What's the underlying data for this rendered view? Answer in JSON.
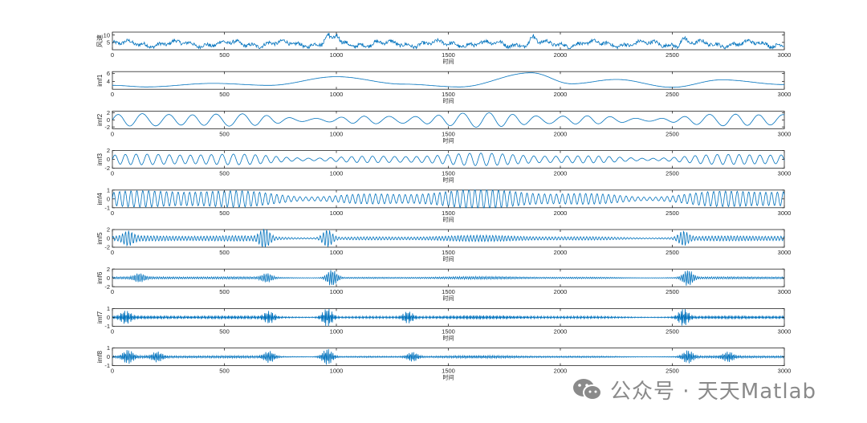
{
  "chart_data": {
    "type": "line",
    "title": "",
    "line_color": "#0072BD",
    "xlim": [
      0,
      3000
    ],
    "xticks": [
      0,
      500,
      1000,
      1500,
      2000,
      2500,
      3000
    ],
    "xlabel": "时间",
    "panels": [
      {
        "name": "wind-speed",
        "ylabel": "风速",
        "ylim": [
          0,
          12
        ],
        "yticks": [
          5,
          10
        ],
        "yticklabels": [
          "5",
          "10"
        ]
      },
      {
        "name": "imf1",
        "ylabel": "imf1",
        "ylim": [
          2,
          6.5
        ],
        "yticks": [
          4,
          6
        ],
        "yticklabels": [
          "4",
          "6"
        ]
      },
      {
        "name": "imf2",
        "ylabel": "imf2",
        "ylim": [
          -2.5,
          2.5
        ],
        "yticks": [
          -2,
          0,
          2
        ],
        "yticklabels": [
          "-2",
          "0",
          "2"
        ]
      },
      {
        "name": "imf3",
        "ylabel": "imf3",
        "ylim": [
          -2,
          2
        ],
        "yticks": [
          -2,
          0,
          2
        ],
        "yticklabels": [
          "-2",
          "0",
          "2"
        ]
      },
      {
        "name": "imf4",
        "ylabel": "imf4",
        "ylim": [
          -1,
          1
        ],
        "yticks": [
          -1,
          0,
          1
        ],
        "yticklabels": [
          "-1",
          "0",
          "1"
        ]
      },
      {
        "name": "imf5",
        "ylabel": "imf5",
        "ylim": [
          -2,
          2
        ],
        "yticks": [
          -2,
          0,
          2
        ],
        "yticklabels": [
          "-2",
          "0",
          "2"
        ]
      },
      {
        "name": "imf6",
        "ylabel": "imf6",
        "ylim": [
          -2,
          2
        ],
        "yticks": [
          -2,
          0,
          2
        ],
        "yticklabels": [
          "-2",
          "0",
          "2"
        ]
      },
      {
        "name": "imf7",
        "ylabel": "imf7",
        "ylim": [
          -1,
          1
        ],
        "yticks": [
          -1,
          0,
          1
        ],
        "yticklabels": [
          "-1",
          "0",
          "1"
        ]
      },
      {
        "name": "imf8",
        "ylabel": "imf8",
        "ylim": [
          -1,
          1
        ],
        "yticks": [
          -1,
          0,
          1
        ],
        "yticklabels": [
          "-1",
          "0",
          "1"
        ]
      }
    ],
    "series_model": {
      "wind-speed": {
        "kind": "noise",
        "base": 4,
        "spikes": [
          [
            960,
            11
          ],
          [
            1000,
            10.5
          ],
          [
            1880,
            10
          ],
          [
            2550,
            9
          ]
        ]
      },
      "imf1": {
        "kind": "trend",
        "knots": [
          [
            0,
            3.0
          ],
          [
            150,
            2.6
          ],
          [
            450,
            3.5
          ],
          [
            700,
            3.0
          ],
          [
            1000,
            5.2
          ],
          [
            1300,
            3.3
          ],
          [
            1550,
            2.6
          ],
          [
            1870,
            6.2
          ],
          [
            2050,
            3.4
          ],
          [
            2250,
            4.5
          ],
          [
            2500,
            2.5
          ],
          [
            2720,
            4.4
          ],
          [
            3000,
            3.2
          ]
        ]
      },
      "imf2": {
        "kind": "osc",
        "period": 110,
        "amp": 1.6
      },
      "imf3": {
        "kind": "osc",
        "period": 48,
        "amp": 1.1
      },
      "imf4": {
        "kind": "osc",
        "period": 26,
        "amp": 0.85
      },
      "imf5": {
        "kind": "osc",
        "period": 14,
        "amp": 0.55,
        "bursts": [
          [
            680,
            1.9
          ],
          [
            960,
            1.8
          ],
          [
            2550,
            1.4
          ],
          [
            70,
            1.2
          ]
        ]
      },
      "imf6": {
        "kind": "osc",
        "period": 9,
        "amp": 0.25,
        "bursts": [
          [
            690,
            0.9
          ],
          [
            980,
            1.8
          ],
          [
            2570,
            1.7
          ],
          [
            120,
            0.8
          ]
        ]
      },
      "imf7": {
        "kind": "osc",
        "period": 6,
        "amp": 0.18,
        "bursts": [
          [
            60,
            0.6
          ],
          [
            960,
            1.0
          ],
          [
            1320,
            0.6
          ],
          [
            2550,
            0.9
          ],
          [
            700,
            0.6
          ]
        ]
      },
      "imf8": {
        "kind": "osc",
        "period": 4,
        "amp": 0.12,
        "bursts": [
          [
            70,
            0.7
          ],
          [
            200,
            0.5
          ],
          [
            700,
            0.6
          ],
          [
            960,
            0.9
          ],
          [
            2570,
            0.7
          ],
          [
            2750,
            0.5
          ],
          [
            1340,
            0.5
          ]
        ]
      }
    }
  },
  "watermark": {
    "text": "公众号 · 天天Matlab",
    "icon": "wechat-icon"
  }
}
